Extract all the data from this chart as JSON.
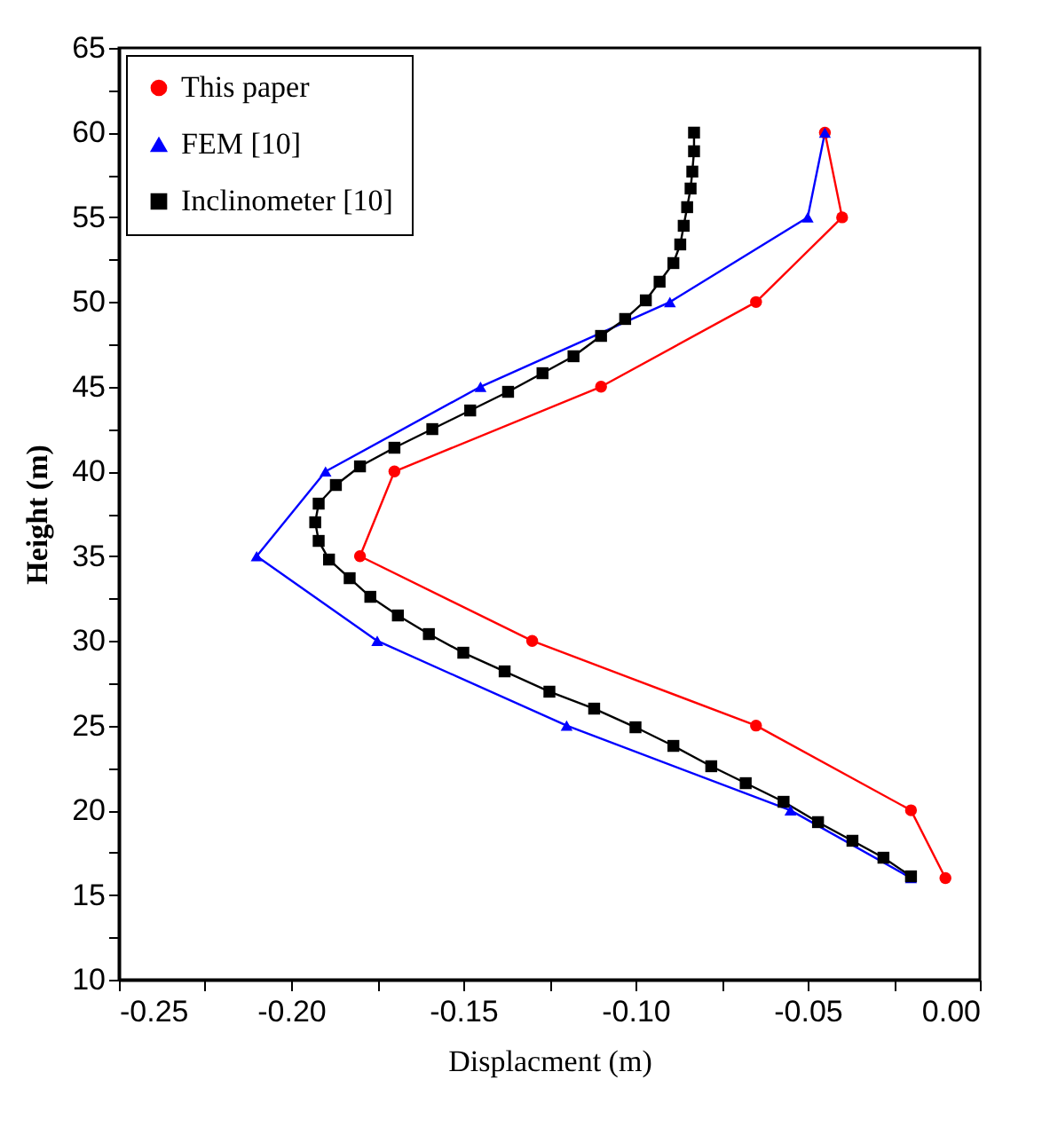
{
  "chart_data": {
    "type": "line",
    "xlabel": "Displacment (m)",
    "ylabel": "Height (m)",
    "legend": "top left",
    "grid": false,
    "xlim": [
      -0.25,
      0.0
    ],
    "xticks": [
      -0.25,
      {
        "value": -0.225,
        "label": null
      },
      {
        "value": -0.2,
        "label": "-0.20"
      },
      {
        "value": -0.175,
        "label": null
      },
      -0.15,
      {
        "value": -0.125,
        "label": null
      },
      {
        "value": -0.1,
        "label": "-0.10"
      },
      {
        "value": -0.075,
        "label": null
      },
      -0.05,
      {
        "value": -0.025,
        "label": null
      },
      {
        "value": 0.0,
        "label": "0.00"
      }
    ],
    "ylim": [
      10,
      65
    ],
    "yticks": [
      10,
      {
        "value": 12.5,
        "label": null
      },
      15,
      {
        "value": 17.5,
        "label": null
      },
      20,
      {
        "value": 22.5,
        "label": null
      },
      25,
      {
        "value": 27.5,
        "label": null
      },
      30,
      {
        "value": 32.5,
        "label": null
      },
      35,
      {
        "value": 37.5,
        "label": null
      },
      40,
      {
        "value": 42.5,
        "label": null
      },
      45,
      {
        "value": 47.5,
        "label": null
      },
      50,
      {
        "value": 52.5,
        "label": null
      },
      55,
      {
        "value": 57.5,
        "label": null
      },
      60,
      {
        "value": 62.5,
        "label": null
      },
      65
    ],
    "series": [
      {
        "name": "This paper",
        "color": "#ff0000",
        "marker": "circle",
        "x": [
          -0.01,
          -0.02,
          -0.065,
          -0.13,
          -0.18,
          -0.17,
          -0.11,
          -0.065,
          -0.04,
          -0.045
        ],
        "values": [
          16,
          20,
          25,
          30,
          35,
          40,
          45,
          50,
          55,
          60
        ]
      },
      {
        "name": "FEM [10]",
        "color": "#0000ff",
        "marker": "triangle",
        "x": [
          -0.02,
          -0.055,
          -0.12,
          -0.175,
          -0.21,
          -0.19,
          -0.145,
          -0.09,
          -0.05,
          -0.045
        ],
        "values": [
          16,
          20,
          25,
          30,
          35,
          40,
          45,
          50,
          55,
          60
        ]
      },
      {
        "name": "Inclinometer [10]",
        "color": "#000000",
        "marker": "square",
        "x": [
          -0.02,
          -0.028,
          -0.037,
          -0.047,
          -0.057,
          -0.068,
          -0.078,
          -0.089,
          -0.1,
          -0.112,
          -0.125,
          -0.138,
          -0.15,
          -0.16,
          -0.169,
          -0.177,
          -0.183,
          -0.189,
          -0.192,
          -0.193,
          -0.192,
          -0.187,
          -0.18,
          -0.17,
          -0.159,
          -0.148,
          -0.137,
          -0.127,
          -0.118,
          -0.11,
          -0.103,
          -0.097,
          -0.093,
          -0.089,
          -0.087,
          -0.086,
          -0.085,
          -0.084,
          -0.0835,
          -0.083,
          -0.083
        ],
        "values": [
          16.1,
          17.2,
          18.2,
          19.3,
          20.5,
          21.6,
          22.6,
          23.8,
          24.9,
          26.0,
          27.0,
          28.2,
          29.3,
          30.4,
          31.5,
          32.6,
          33.7,
          34.8,
          35.9,
          37.0,
          38.1,
          39.2,
          40.3,
          41.4,
          42.5,
          43.6,
          44.7,
          45.8,
          46.8,
          48.0,
          49.0,
          50.1,
          51.2,
          52.3,
          53.4,
          54.5,
          55.6,
          56.7,
          57.7,
          58.9,
          60.0
        ]
      }
    ]
  }
}
